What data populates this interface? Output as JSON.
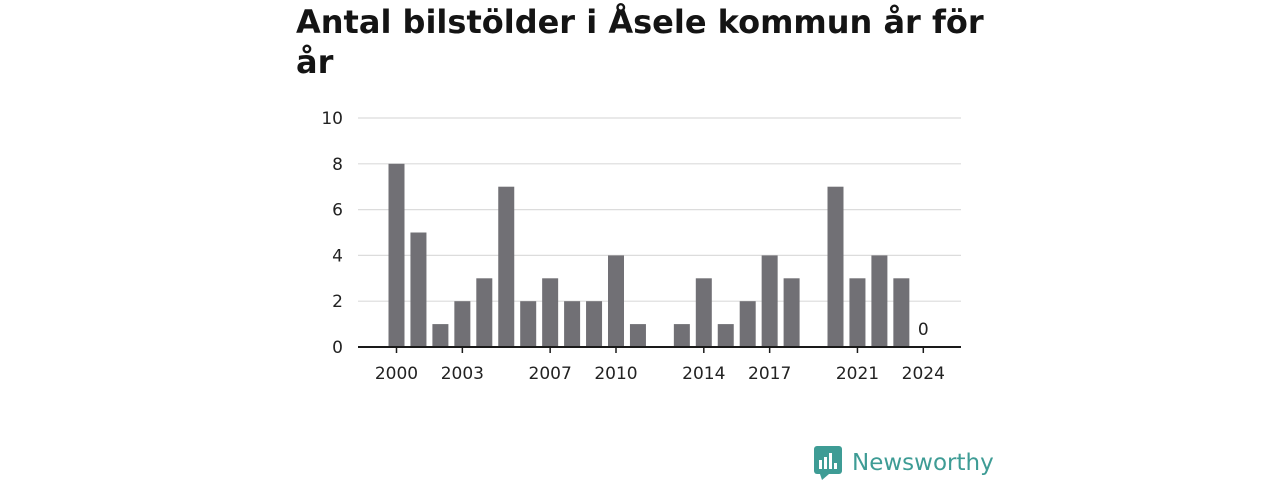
{
  "chart_data": {
    "type": "bar",
    "title": "Antal bilstölder i Åsele kommun år för år",
    "x": [
      2000,
      2001,
      2002,
      2003,
      2004,
      2005,
      2006,
      2007,
      2008,
      2009,
      2010,
      2011,
      2012,
      2013,
      2014,
      2015,
      2016,
      2017,
      2018,
      2019,
      2020,
      2021,
      2022,
      2023,
      2024
    ],
    "values": [
      8,
      5,
      1,
      2,
      3,
      7,
      2,
      3,
      2,
      2,
      4,
      1,
      null,
      1,
      3,
      1,
      2,
      4,
      3,
      null,
      7,
      3,
      4,
      3,
      0
    ],
    "x_tick_labels": [
      "2000",
      "2003",
      "2007",
      "2010",
      "2014",
      "2017",
      "2021",
      "2024"
    ],
    "y_ticks": [
      "0",
      "2",
      "4",
      "6",
      "8",
      "10"
    ],
    "ylim": [
      0,
      10
    ],
    "data_labels": [
      {
        "x": 2024,
        "text": "0"
      }
    ],
    "bar_color": "#717075",
    "grid": true,
    "xlabel": "",
    "ylabel": ""
  },
  "brand": {
    "name": "Newsworthy",
    "color": "#3e9c95"
  }
}
